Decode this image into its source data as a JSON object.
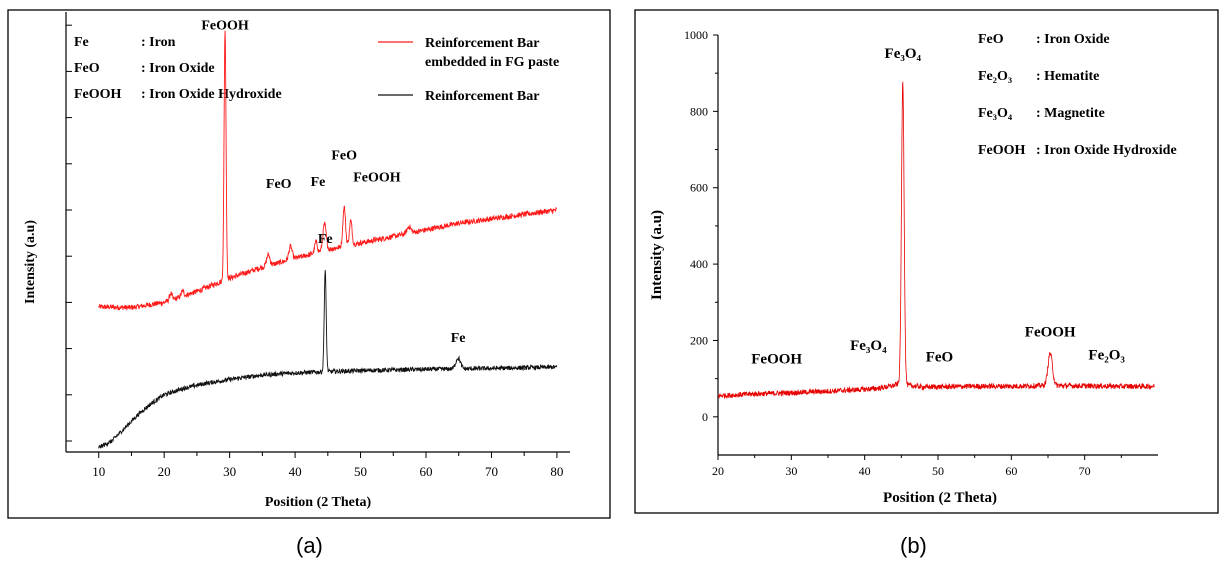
{
  "panels": [
    {
      "tag": "(a)",
      "chart_data": {
        "type": "line",
        "title": "",
        "xlabel": "Position (2 Theta)",
        "ylabel": "Intensity (a.u)",
        "xlim": [
          5,
          82
        ],
        "ylim": [
          0,
          100
        ],
        "x_ticks": [
          "10",
          "20",
          "30",
          "40",
          "50",
          "60",
          "70",
          "80"
        ],
        "x_tick_values": [
          10,
          20,
          30,
          40,
          50,
          60,
          70,
          80
        ],
        "y_tick_labels_shown": false,
        "key": [
          {
            "abbr": "Fe",
            "name": ": Iron"
          },
          {
            "abbr": "FeO",
            "name": ": Iron Oxide"
          },
          {
            "abbr": "FeOOH",
            "name": ": Iron Oxide Hydroxide"
          }
        ],
        "legend_placement": "top-right",
        "series": [
          {
            "name_lines": [
              "Reinforcement Bar",
              "embedded in FG paste"
            ],
            "color": "#ff1a1a",
            "baseline": [
              [
                10,
                33
              ],
              [
                15,
                32.8
              ],
              [
                20,
                34
              ],
              [
                25,
                36.5
              ],
              [
                30,
                39.5
              ],
              [
                35,
                42
              ],
              [
                40,
                44
              ],
              [
                45,
                46
              ],
              [
                50,
                47.5
              ],
              [
                55,
                49
              ],
              [
                60,
                50.5
              ],
              [
                65,
                52
              ],
              [
                70,
                53
              ],
              [
                75,
                54
              ],
              [
                80,
                55
              ]
            ],
            "noise": 0.6,
            "peaks": [
              {
                "x": 21.0,
                "h": 1.5,
                "w": 0.2
              },
              {
                "x": 22.8,
                "h": 1.2,
                "w": 0.2
              },
              {
                "x": 29.3,
                "h": 57,
                "w": 0.15
              },
              {
                "x": 35.9,
                "h": 2.5,
                "w": 0.25
              },
              {
                "x": 39.3,
                "h": 3.0,
                "w": 0.25
              },
              {
                "x": 43.2,
                "h": 2.5,
                "w": 0.2
              },
              {
                "x": 44.5,
                "h": 6.0,
                "w": 0.25
              },
              {
                "x": 47.5,
                "h": 9.0,
                "w": 0.2
              },
              {
                "x": 48.5,
                "h": 5.5,
                "w": 0.2
              },
              {
                "x": 57.4,
                "h": 1.5,
                "w": 0.3
              }
            ],
            "peak_labels": [
              {
                "text": "FeOOH",
                "x": 29.3,
                "y": 96
              },
              {
                "text": "FeO",
                "x": 37.5,
                "y": 60
              },
              {
                "text": "Fe",
                "x": 43.5,
                "y": 60.5
              },
              {
                "text": "FeO",
                "x": 47.5,
                "y": 66.5
              },
              {
                "text": "FeOOH",
                "x": 52.5,
                "y": 61.5
              }
            ]
          },
          {
            "name_lines": [
              "Reinforcement Bar"
            ],
            "color": "#111111",
            "baseline": [
              [
                10,
                1
              ],
              [
                12,
                2.5
              ],
              [
                14,
                5.5
              ],
              [
                16,
                8.5
              ],
              [
                18,
                11
              ],
              [
                20,
                13
              ],
              [
                23,
                14.5
              ],
              [
                26,
                15.5
              ],
              [
                30,
                16.5
              ],
              [
                35,
                17.5
              ],
              [
                40,
                18
              ],
              [
                50,
                18.5
              ],
              [
                60,
                18.8
              ],
              [
                70,
                19
              ],
              [
                80,
                19.3
              ]
            ],
            "noise": 0.5,
            "peaks": [
              {
                "x": 44.6,
                "h": 23,
                "w": 0.15
              },
              {
                "x": 64.9,
                "h": 2.5,
                "w": 0.35
              }
            ],
            "peak_labels": [
              {
                "text": "Fe",
                "x": 44.6,
                "y": 47.5
              },
              {
                "text": "Fe",
                "x": 64.9,
                "y": 25
              }
            ]
          }
        ]
      }
    },
    {
      "tag": "(b)",
      "chart_data": {
        "type": "line",
        "title": "",
        "xlabel": "Position (2 Theta)",
        "ylabel": "Intensity (a.u)",
        "xlim": [
          20,
          80
        ],
        "ylim": [
          -100,
          1000
        ],
        "x_ticks": [
          "20",
          "30",
          "40",
          "50",
          "60",
          "70"
        ],
        "x_tick_values": [
          20,
          30,
          40,
          50,
          60,
          70
        ],
        "y_ticks": [
          "0",
          "200",
          "400",
          "600",
          "800",
          "1000"
        ],
        "y_tick_values": [
          0,
          200,
          400,
          600,
          800,
          1000
        ],
        "key": [
          {
            "abbr": "FeO",
            "name": ": Iron Oxide"
          },
          {
            "abbr": "Fe₂O₃",
            "name": ": Hematite"
          },
          {
            "abbr": "Fe₃O₄",
            "name": ": Magnetite"
          },
          {
            "abbr": "FeOOH",
            "name": ": Iron Oxide Hydroxide"
          }
        ],
        "legend_placement": "top-right",
        "series": [
          {
            "color": "#e60000",
            "baseline": [
              [
                20,
                55
              ],
              [
                25,
                60
              ],
              [
                30,
                63
              ],
              [
                35,
                67
              ],
              [
                40,
                72
              ],
              [
                42,
                75
              ],
              [
                44,
                82
              ],
              [
                45,
                90
              ],
              [
                46,
                82
              ],
              [
                48,
                78
              ],
              [
                55,
                80
              ],
              [
                60,
                80
              ],
              [
                65,
                82
              ],
              [
                70,
                81
              ],
              [
                75,
                80
              ],
              [
                79.5,
                80
              ]
            ],
            "noise": 7,
            "peaks": [
              {
                "x": 45.2,
                "h": 790,
                "w": 0.18
              },
              {
                "x": 65.3,
                "h": 85,
                "w": 0.3
              }
            ],
            "peak_labels": [
              {
                "text": "Fe₃O₄",
                "x": 45.2,
                "y": 940
              },
              {
                "text": "FeOOH",
                "x": 28,
                "y": 140
              },
              {
                "text": "Fe₃O₄",
                "x": 40.5,
                "y": 175
              },
              {
                "text": "FeO",
                "x": 50.2,
                "y": 145
              },
              {
                "text": "FeOOH",
                "x": 65.3,
                "y": 210
              },
              {
                "text": "Fe₂O₃",
                "x": 73,
                "y": 150
              }
            ]
          }
        ]
      }
    }
  ]
}
